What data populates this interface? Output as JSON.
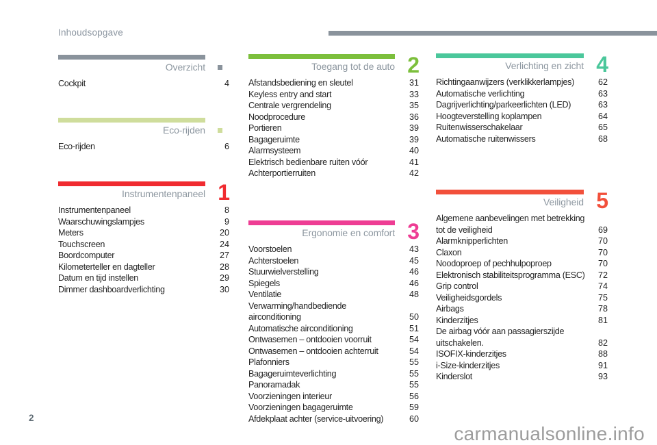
{
  "page": {
    "header": "Inhoudsopgave",
    "page_number": "2",
    "watermark": "carmanualsonline.info"
  },
  "colors": {
    "rule_gray": "#8a939c",
    "title_gray": "#8d97a0",
    "body_text": "#232323",
    "watermark_gray": "#9c9c9c"
  },
  "sections": [
    {
      "title": "Overzicht",
      "color": "#8a939c",
      "marker_type": "square",
      "marker": "",
      "items": [
        {
          "label": "Cockpit",
          "page": "4"
        }
      ]
    },
    {
      "title": "Eco-rijden",
      "color": "#cfdd9c",
      "marker_type": "square",
      "marker": "",
      "items": [
        {
          "label": "Eco-rijden",
          "page": "6"
        }
      ]
    },
    {
      "title": "Instrumentenpaneel",
      "color": "#f02b30",
      "marker_type": "digit",
      "marker": "1",
      "items": [
        {
          "label": "Instrumentenpaneel",
          "page": "8"
        },
        {
          "label": "Waarschuwingslampjes",
          "page": "9"
        },
        {
          "label": "Meters",
          "page": "20"
        },
        {
          "label": "Touchscreen",
          "page": "24"
        },
        {
          "label": "Boordcomputer",
          "page": "27"
        },
        {
          "label": "Kilometerteller en dagteller",
          "page": "28"
        },
        {
          "label": "Datum en tijd instellen",
          "page": "29"
        },
        {
          "label": "Dimmer dashboardverlichting",
          "page": "30"
        }
      ]
    },
    {
      "title": "Toegang tot de auto",
      "color": "#7cbf3c",
      "marker_type": "digit",
      "marker": "2",
      "items": [
        {
          "label": "Afstandsbediening en sleutel",
          "page": "31"
        },
        {
          "label": "Keyless entry and start",
          "page": "33"
        },
        {
          "label": "Centrale vergrendeling",
          "page": "35"
        },
        {
          "label": "Noodprocedure",
          "page": "36"
        },
        {
          "label": "Portieren",
          "page": "39"
        },
        {
          "label": "Bagageruimte",
          "page": "39"
        },
        {
          "label": "Alarmsysteem",
          "page": "40"
        },
        {
          "label": "Elektrisch bedienbare ruiten vóór",
          "page": "41"
        },
        {
          "label": "Achterportierruiten",
          "page": "42"
        }
      ]
    },
    {
      "title": "Ergonomie en comfort",
      "color": "#ee3d94",
      "marker_type": "digit",
      "marker": "3",
      "items": [
        {
          "label": "Voorstoelen",
          "page": "43"
        },
        {
          "label": "Achterstoelen",
          "page": "45"
        },
        {
          "label": "Stuurwielverstelling",
          "page": "46"
        },
        {
          "label": "Spiegels",
          "page": "46"
        },
        {
          "label": "Ventilatie",
          "page": "48"
        },
        {
          "label": "Verwarming/handbediende airconditioning",
          "page": "50"
        },
        {
          "label": "Automatische airconditioning",
          "page": "51"
        },
        {
          "label": "Ontwasemen – ontdooien voorruit",
          "page": "54"
        },
        {
          "label": "Ontwasemen – ontdooien achterruit",
          "page": "54"
        },
        {
          "label": "Plafonniers",
          "page": "55"
        },
        {
          "label": "Bagageruimteverlichting",
          "page": "55"
        },
        {
          "label": "Panoramadak",
          "page": "55"
        },
        {
          "label": "Voorzieningen interieur",
          "page": "56"
        },
        {
          "label": "Voorzieningen bagageruimte",
          "page": "59"
        },
        {
          "label": "Afdekplaat achter (service-uitvoering)",
          "page": "60"
        }
      ]
    },
    {
      "title": "Verlichting en zicht",
      "color": "#4bc79b",
      "marker_type": "digit",
      "marker": "4",
      "items": [
        {
          "label": "Richtingaanwijzers (verklikkerlampjes)",
          "page": "62"
        },
        {
          "label": "Automatische verlichting",
          "page": "63"
        },
        {
          "label": "Dagrijverlichting/parkeerlichten (LED)",
          "page": "63"
        },
        {
          "label": "Hoogteverstelling koplampen",
          "page": "64"
        },
        {
          "label": "Ruitenwisserschakelaar",
          "page": "65"
        },
        {
          "label": "Automatische ruitenwissers",
          "page": "68"
        }
      ]
    },
    {
      "title": "Veiligheid",
      "color": "#f2503b",
      "marker_type": "digit",
      "marker": "5",
      "items": [
        {
          "label": "Algemene aanbevelingen met betrekking\ntot de veiligheid",
          "page": "69"
        },
        {
          "label": "Alarmknipperlichten",
          "page": "70"
        },
        {
          "label": "Claxon",
          "page": "70"
        },
        {
          "label": "Noodoproep of pechhulpoproep",
          "page": "70"
        },
        {
          "label": "Elektronisch stabiliteitsprogramma (ESC)",
          "page": "72"
        },
        {
          "label": "Grip control",
          "page": "74"
        },
        {
          "label": "Veiligheidsgordels",
          "page": "75"
        },
        {
          "label": "Airbags",
          "page": "78"
        },
        {
          "label": "Kinderzitjes",
          "page": "81"
        },
        {
          "label": "De airbag vóór aan passagierszijde\nuitschakelen.",
          "page": "82"
        },
        {
          "label": "ISOFIX-kinderzitjes",
          "page": "88"
        },
        {
          "label": "i-Size-kinderzitjes",
          "page": "91"
        },
        {
          "label": "Kinderslot",
          "page": "93"
        }
      ]
    }
  ]
}
